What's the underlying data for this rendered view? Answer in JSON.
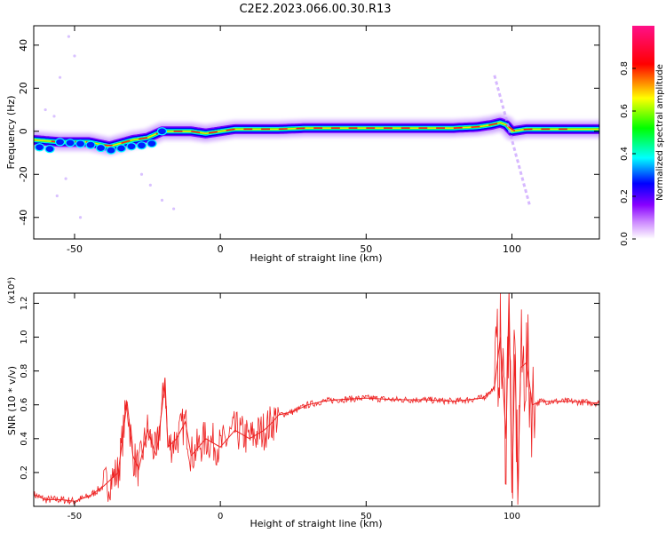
{
  "title": "C2E2.2023.066.00.30.R13",
  "chart_data": [
    {
      "type": "heatmap",
      "title": "C2E2.2023.066.00.30.R13",
      "xlabel": "Height of straight line (km)",
      "ylabel": "Frequency (Hz)",
      "xlim": [
        -64,
        130
      ],
      "ylim": [
        -50,
        49
      ],
      "xticks": [
        -50,
        0,
        50,
        100
      ],
      "yticks": [
        40,
        20,
        0,
        -20,
        -40
      ],
      "ridge": {
        "x": [
          -64,
          -55,
          -45,
          -38,
          -30,
          -25,
          -20,
          -15,
          -10,
          -5,
          0,
          5,
          10,
          20,
          30,
          40,
          50,
          60,
          70,
          80,
          88,
          93,
          96,
          98,
          100,
          105,
          115,
          130
        ],
        "y": [
          -4,
          -5,
          -5,
          -7,
          -4,
          -3,
          0,
          0,
          0,
          -1,
          0,
          1,
          1,
          1,
          1.5,
          1.5,
          1.5,
          1.5,
          1.5,
          1.5,
          2,
          3,
          4,
          3,
          0,
          1,
          1,
          1
        ]
      },
      "colorbar": {
        "label": "Normalized spectral amplitude",
        "ticks": [
          0.0,
          0.2,
          0.4,
          0.6,
          0.8
        ],
        "colormap": [
          "#ffffff",
          "#8800ff",
          "#0000ff",
          "#00ffff",
          "#00ff00",
          "#ffff00",
          "#ff0000",
          "#ff1088"
        ]
      },
      "grid": false
    },
    {
      "type": "line",
      "xlabel": "Height of straight line (km)",
      "ylabel": "SNR (10 * v/v)",
      "scale_label": "(x10⁴)",
      "xlim": [
        -64,
        130
      ],
      "ylim": [
        0.0,
        1.26
      ],
      "xticks": [
        -50,
        0,
        50,
        100
      ],
      "yticks": [
        1.2,
        1.0,
        0.8,
        0.6,
        0.4,
        0.2
      ],
      "color": "#ee2222",
      "x": [
        -64,
        -60,
        -55,
        -50,
        -45,
        -40,
        -35,
        -32,
        -30,
        -28,
        -25,
        -22,
        -20,
        -19,
        -18,
        -15,
        -12,
        -10,
        -5,
        0,
        5,
        10,
        15,
        18,
        20,
        25,
        30,
        35,
        40,
        50,
        60,
        70,
        80,
        85,
        90,
        94,
        96,
        98,
        99,
        100,
        101,
        102,
        103,
        105,
        107,
        110,
        115,
        120,
        130
      ],
      "y": [
        0.07,
        0.04,
        0.04,
        0.03,
        0.06,
        0.12,
        0.2,
        0.62,
        0.3,
        0.22,
        0.45,
        0.3,
        0.58,
        0.76,
        0.35,
        0.4,
        0.5,
        0.3,
        0.4,
        0.35,
        0.45,
        0.4,
        0.45,
        0.5,
        0.54,
        0.56,
        0.6,
        0.62,
        0.63,
        0.64,
        0.63,
        0.63,
        0.62,
        0.63,
        0.64,
        0.7,
        1.0,
        0.4,
        1.26,
        0.08,
        0.9,
        0.1,
        0.82,
        0.85,
        0.6,
        0.62,
        0.62,
        0.62,
        0.61
      ]
    }
  ]
}
